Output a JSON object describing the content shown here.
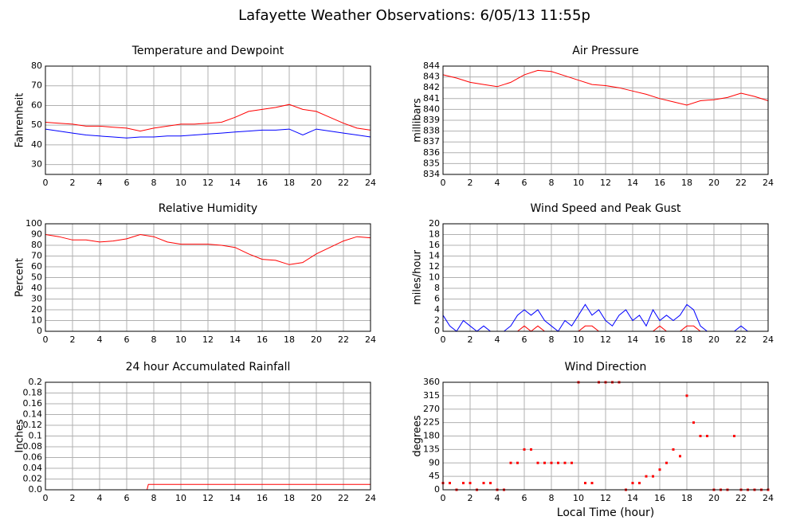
{
  "title": "Lafayette Weather Observations: 6/05/13 11:55p",
  "chart_data": [
    {
      "type": "line",
      "title": "Temperature and Dewpoint",
      "ylabel": "Fahrenheit",
      "x": [
        0,
        1,
        2,
        3,
        4,
        5,
        6,
        7,
        8,
        9,
        10,
        11,
        12,
        13,
        14,
        15,
        16,
        17,
        18,
        19,
        20,
        21,
        22,
        23,
        24
      ],
      "series": [
        {
          "color": "#ff0000",
          "values": [
            51.5,
            51,
            50.5,
            49.5,
            49.5,
            49,
            48.5,
            47,
            48.5,
            49.5,
            50.5,
            50.5,
            51,
            51.5,
            54,
            57,
            58,
            59,
            60.5,
            58,
            57,
            54,
            51,
            48.5,
            47.5
          ]
        },
        {
          "color": "#0000ff",
          "values": [
            48,
            47,
            46,
            45,
            44.5,
            44,
            43.5,
            44,
            44,
            44.5,
            44.5,
            45,
            45.5,
            46,
            46.5,
            47,
            47.5,
            47.5,
            48,
            45,
            48,
            47,
            46,
            45,
            44
          ]
        }
      ],
      "xlim": [
        0,
        24
      ],
      "xticks": [
        0,
        2,
        4,
        6,
        8,
        10,
        12,
        14,
        16,
        18,
        20,
        22,
        24
      ],
      "ylim": [
        25,
        80
      ],
      "yticks": [
        30,
        40,
        50,
        60,
        70,
        80
      ],
      "grid": true
    },
    {
      "type": "line",
      "title": "Air Pressure",
      "ylabel": "millibars",
      "x": [
        0,
        1,
        2,
        3,
        4,
        5,
        6,
        7,
        8,
        9,
        10,
        11,
        12,
        13,
        14,
        15,
        16,
        17,
        18,
        19,
        20,
        21,
        22,
        23,
        24
      ],
      "series": [
        {
          "color": "#ff0000",
          "values": [
            843.2,
            842.9,
            842.5,
            842.3,
            842.1,
            842.5,
            843.2,
            843.6,
            843.5,
            843.1,
            842.7,
            842.3,
            842.2,
            842,
            841.7,
            841.4,
            841,
            840.7,
            840.4,
            840.8,
            840.9,
            841.1,
            841.5,
            841.2,
            840.8
          ]
        }
      ],
      "xlim": [
        0,
        24
      ],
      "xticks": [
        0,
        2,
        4,
        6,
        8,
        10,
        12,
        14,
        16,
        18,
        20,
        22,
        24
      ],
      "ylim": [
        834,
        844
      ],
      "yticks": [
        834,
        835,
        836,
        837,
        838,
        839,
        840,
        841,
        842,
        843,
        844
      ],
      "grid": true
    },
    {
      "type": "line",
      "title": "Relative Humidity",
      "ylabel": "Percent",
      "x": [
        0,
        1,
        2,
        3,
        4,
        5,
        6,
        7,
        8,
        9,
        10,
        11,
        12,
        13,
        14,
        15,
        16,
        17,
        18,
        19,
        20,
        21,
        22,
        23,
        24
      ],
      "series": [
        {
          "color": "#ff0000",
          "values": [
            90,
            88,
            85,
            85,
            83,
            84,
            86,
            90,
            88,
            83,
            81,
            81,
            81,
            80,
            78,
            72,
            67,
            66,
            62,
            64,
            72,
            78,
            84,
            88,
            87
          ]
        }
      ],
      "xlim": [
        0,
        24
      ],
      "xticks": [
        0,
        2,
        4,
        6,
        8,
        10,
        12,
        14,
        16,
        18,
        20,
        22,
        24
      ],
      "ylim": [
        0,
        100
      ],
      "yticks": [
        0,
        10,
        20,
        30,
        40,
        50,
        60,
        70,
        80,
        90,
        100
      ],
      "grid": true
    },
    {
      "type": "line",
      "title": "Wind Speed and Peak Gust",
      "ylabel": "miles/hour",
      "x": [
        0,
        0.5,
        1,
        1.5,
        2,
        2.5,
        3,
        3.5,
        4,
        4.5,
        5,
        5.5,
        6,
        6.5,
        7,
        7.5,
        8,
        8.5,
        9,
        9.5,
        10,
        10.5,
        11,
        11.5,
        12,
        12.5,
        13,
        13.5,
        14,
        14.5,
        15,
        15.5,
        16,
        16.5,
        17,
        17.5,
        18,
        18.5,
        19,
        19.5,
        20,
        20.5,
        21,
        21.5,
        22,
        22.5,
        23,
        23.5,
        24
      ],
      "series": [
        {
          "color": "#0000ff",
          "values": [
            3,
            1,
            0,
            2,
            1,
            0,
            1,
            0,
            0,
            0,
            1,
            3,
            4,
            3,
            4,
            2,
            1,
            0,
            2,
            1,
            3,
            5,
            3,
            4,
            2,
            1,
            3,
            4,
            2,
            3,
            1,
            4,
            2,
            3,
            2,
            3,
            5,
            4,
            1,
            0,
            0,
            0,
            0,
            0,
            1,
            0,
            0,
            0,
            0
          ]
        },
        {
          "color": "#ff0000",
          "values": [
            0,
            0,
            0,
            0,
            0,
            0,
            0,
            0,
            0,
            0,
            0,
            0,
            1,
            0,
            1,
            0,
            0,
            0,
            0,
            0,
            0,
            1,
            1,
            0,
            0,
            0,
            0,
            0,
            0,
            0,
            0,
            0,
            1,
            0,
            0,
            0,
            1,
            1,
            0,
            0,
            0,
            0,
            0,
            0,
            0,
            0,
            0,
            0,
            0
          ]
        }
      ],
      "xlim": [
        0,
        24
      ],
      "xticks": [
        0,
        2,
        4,
        6,
        8,
        10,
        12,
        14,
        16,
        18,
        20,
        22,
        24
      ],
      "ylim": [
        0,
        20
      ],
      "yticks": [
        0,
        2,
        4,
        6,
        8,
        10,
        12,
        14,
        16,
        18,
        20
      ],
      "grid": true
    },
    {
      "type": "line",
      "title": "24 hour Accumulated Rainfall",
      "ylabel": "Inches",
      "x": [
        0,
        7.5,
        7.6,
        24
      ],
      "series": [
        {
          "color": "#ff0000",
          "values": [
            0,
            0,
            0.01,
            0.01
          ]
        }
      ],
      "xlim": [
        0,
        24
      ],
      "xticks": [
        0,
        2,
        4,
        6,
        8,
        10,
        12,
        14,
        16,
        18,
        20,
        22,
        24
      ],
      "ylim": [
        0,
        0.2
      ],
      "yticks": [
        {
          "value": 0,
          "label": "0.0"
        },
        0.02,
        0.04,
        0.06,
        0.08,
        0.1,
        0.12,
        0.14,
        0.16,
        0.18,
        0.2
      ],
      "grid": true
    },
    {
      "type": "scatter",
      "title": "Wind Direction",
      "ylabel": "degrees",
      "xlabel": "Local Time (hour)",
      "x": [
        0,
        0.5,
        1,
        1.5,
        2,
        2.5,
        3,
        3.5,
        4,
        4.5,
        5,
        5.5,
        6,
        6.5,
        7,
        7.5,
        8,
        8.5,
        9,
        9.5,
        10,
        10.5,
        11,
        11.5,
        12,
        12.5,
        13,
        13.5,
        14,
        14.5,
        15,
        15.5,
        16,
        16.5,
        17,
        17.5,
        18,
        18.5,
        19,
        19.5,
        20,
        20.5,
        21,
        21.5,
        22,
        22.5,
        23,
        23.5,
        24
      ],
      "series": [
        {
          "color": "#ff0000",
          "values": [
            22.5,
            22.5,
            0,
            22.5,
            22.5,
            0,
            22.5,
            22.5,
            0,
            0,
            90,
            90,
            135,
            135,
            90,
            90,
            90,
            90,
            90,
            90,
            360,
            22.5,
            22.5,
            360,
            360,
            360,
            360,
            0,
            22.5,
            22.5,
            45,
            45,
            67.5,
            90,
            135,
            112.5,
            315,
            225,
            180,
            180,
            0,
            0,
            0,
            180,
            0,
            0,
            0,
            0,
            0
          ]
        }
      ],
      "xlim": [
        0,
        24
      ],
      "xticks": [
        0,
        2,
        4,
        6,
        8,
        10,
        12,
        14,
        16,
        18,
        20,
        22,
        24
      ],
      "ylim": [
        0,
        360
      ],
      "yticks": [
        0,
        45,
        90,
        135,
        180,
        225,
        270,
        315,
        360
      ],
      "grid": true
    }
  ]
}
